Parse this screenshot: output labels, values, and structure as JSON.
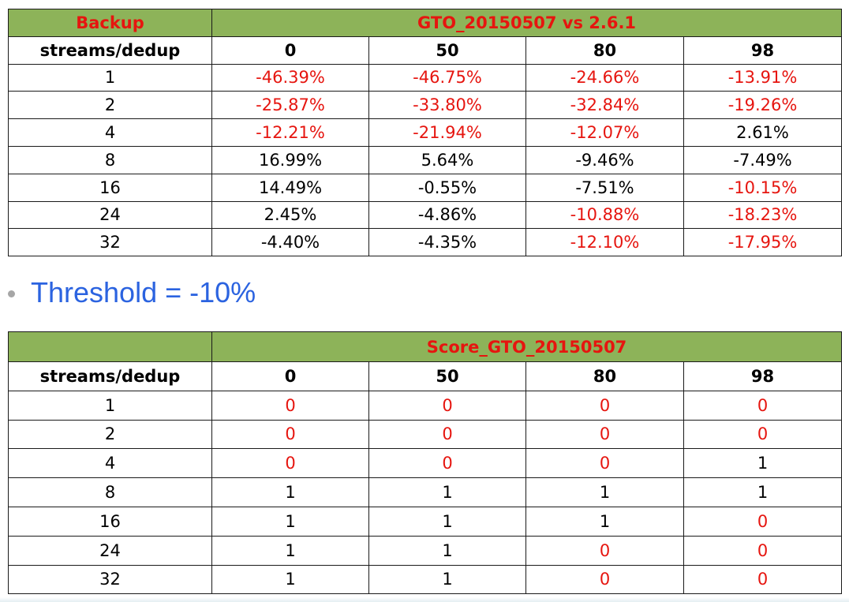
{
  "table1": {
    "corner": "Backup",
    "title": "GTO_20150507 vs 2.6.1",
    "row_header": "streams/dedup",
    "columns": [
      "0",
      "50",
      "80",
      "98"
    ],
    "rows": [
      {
        "label": "1",
        "cells": [
          {
            "v": "-46.39%",
            "red": true
          },
          {
            "v": "-46.75%",
            "red": true
          },
          {
            "v": "-24.66%",
            "red": true
          },
          {
            "v": "-13.91%",
            "red": true
          }
        ]
      },
      {
        "label": "2",
        "cells": [
          {
            "v": "-25.87%",
            "red": true
          },
          {
            "v": "-33.80%",
            "red": true
          },
          {
            "v": "-32.84%",
            "red": true
          },
          {
            "v": "-19.26%",
            "red": true
          }
        ]
      },
      {
        "label": "4",
        "cells": [
          {
            "v": "-12.21%",
            "red": true
          },
          {
            "v": "-21.94%",
            "red": true
          },
          {
            "v": "-12.07%",
            "red": true
          },
          {
            "v": "2.61%",
            "red": false
          }
        ]
      },
      {
        "label": "8",
        "cells": [
          {
            "v": "16.99%",
            "red": false
          },
          {
            "v": "5.64%",
            "red": false
          },
          {
            "v": "-9.46%",
            "red": false
          },
          {
            "v": "-7.49%",
            "red": false
          }
        ]
      },
      {
        "label": "16",
        "cells": [
          {
            "v": "14.49%",
            "red": false
          },
          {
            "v": "-0.55%",
            "red": false
          },
          {
            "v": "-7.51%",
            "red": false
          },
          {
            "v": "-10.15%",
            "red": true
          }
        ]
      },
      {
        "label": "24",
        "cells": [
          {
            "v": "2.45%",
            "red": false
          },
          {
            "v": "-4.86%",
            "red": false
          },
          {
            "v": "-10.88%",
            "red": true
          },
          {
            "v": "-18.23%",
            "red": true
          }
        ]
      },
      {
        "label": "32",
        "cells": [
          {
            "v": "-4.40%",
            "red": false
          },
          {
            "v": "-4.35%",
            "red": false
          },
          {
            "v": "-12.10%",
            "red": true
          },
          {
            "v": "-17.95%",
            "red": true
          }
        ]
      }
    ]
  },
  "bullet": {
    "text": "Threshold = -10%"
  },
  "table2": {
    "corner": "",
    "title": "Score_GTO_20150507",
    "row_header": "streams/dedup",
    "columns": [
      "0",
      "50",
      "80",
      "98"
    ],
    "rows": [
      {
        "label": "1",
        "cells": [
          {
            "v": "0",
            "red": true
          },
          {
            "v": "0",
            "red": true
          },
          {
            "v": "0",
            "red": true
          },
          {
            "v": "0",
            "red": true
          }
        ]
      },
      {
        "label": "2",
        "cells": [
          {
            "v": "0",
            "red": true
          },
          {
            "v": "0",
            "red": true
          },
          {
            "v": "0",
            "red": true
          },
          {
            "v": "0",
            "red": true
          }
        ]
      },
      {
        "label": "4",
        "cells": [
          {
            "v": "0",
            "red": true
          },
          {
            "v": "0",
            "red": true
          },
          {
            "v": "0",
            "red": true
          },
          {
            "v": "1",
            "red": false
          }
        ]
      },
      {
        "label": "8",
        "cells": [
          {
            "v": "1",
            "red": false
          },
          {
            "v": "1",
            "red": false
          },
          {
            "v": "1",
            "red": false
          },
          {
            "v": "1",
            "red": false
          }
        ]
      },
      {
        "label": "16",
        "cells": [
          {
            "v": "1",
            "red": false
          },
          {
            "v": "1",
            "red": false
          },
          {
            "v": "1",
            "red": false
          },
          {
            "v": "0",
            "red": true
          }
        ]
      },
      {
        "label": "24",
        "cells": [
          {
            "v": "1",
            "red": false
          },
          {
            "v": "1",
            "red": false
          },
          {
            "v": "0",
            "red": true
          },
          {
            "v": "0",
            "red": true
          }
        ]
      },
      {
        "label": "32",
        "cells": [
          {
            "v": "1",
            "red": false
          },
          {
            "v": "1",
            "red": false
          },
          {
            "v": "0",
            "red": true
          },
          {
            "v": "0",
            "red": true
          }
        ]
      }
    ]
  }
}
